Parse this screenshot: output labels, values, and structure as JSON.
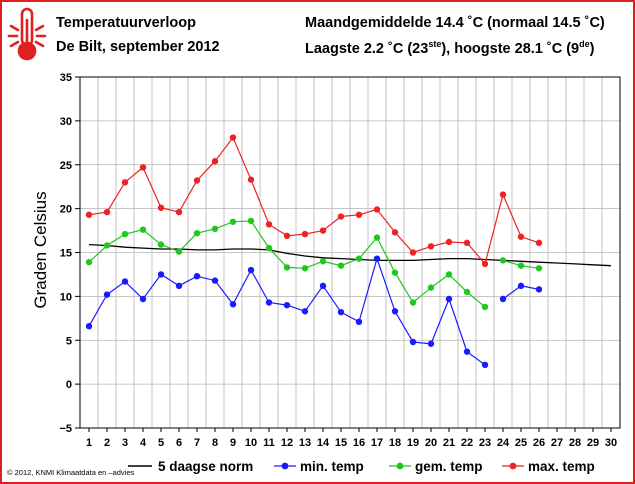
{
  "header": {
    "title": "Temperatuurverloop",
    "location": "De Bilt, september 2012",
    "monthly_avg": "Maandgemiddelde 14.4 ˚C (normaal 14.5 ˚C)",
    "extremes_low": "Laagste 2.2 ˚C (23",
    "extremes_low_sup": "ste",
    "extremes_high": "), hoogste 28.1 ˚C (9",
    "extremes_high_sup": "de",
    "extremes_close": ")"
  },
  "footnote": "© 2012, KNMI Klimaatdata en –advies",
  "logo": {
    "icon": "thermometer-icon"
  },
  "colors": {
    "frame": "#e02020",
    "norm": "#000000",
    "min": "#1a1aff",
    "avg": "#1ec81e",
    "max": "#ee2222",
    "grid": "#b4b4b4",
    "axis": "#000000"
  },
  "chart_data": {
    "type": "line",
    "title": "Temperatuurverloop",
    "ylabel": "Graden Celsius",
    "xlabel": "",
    "ylim": [
      -5,
      35
    ],
    "yticks": [
      -5,
      0,
      5,
      10,
      15,
      20,
      25,
      30,
      35
    ],
    "ytick_labels": [
      "−5",
      "0",
      "5",
      "10",
      "15",
      "20",
      "25",
      "30",
      "35"
    ],
    "x": [
      1,
      2,
      3,
      4,
      5,
      6,
      7,
      8,
      9,
      10,
      11,
      12,
      13,
      14,
      15,
      16,
      17,
      18,
      19,
      20,
      21,
      22,
      23,
      24,
      25,
      26,
      27,
      28,
      29,
      30
    ],
    "xtick_labels": [
      "1",
      "2",
      "3",
      "4",
      "5",
      "6",
      "7",
      "8",
      "9",
      "10",
      "11",
      "12",
      "13",
      "14",
      "15",
      "16",
      "17",
      "18",
      "19",
      "20",
      "21",
      "22",
      "23",
      "24",
      "25",
      "26",
      "27",
      "28",
      "29",
      "30"
    ],
    "grid": true,
    "legend_position": "bottom",
    "series": [
      {
        "key": "norm",
        "name": "5 daagse norm",
        "marker": false,
        "segments": [
          [
            [
              1,
              15.9
            ],
            [
              2,
              15.8
            ],
            [
              3,
              15.6
            ],
            [
              4,
              15.5
            ],
            [
              5,
              15.4
            ],
            [
              6,
              15.4
            ],
            [
              7,
              15.3
            ],
            [
              8,
              15.3
            ],
            [
              9,
              15.4
            ],
            [
              10,
              15.4
            ],
            [
              11,
              15.3
            ],
            [
              12,
              14.9
            ],
            [
              13,
              14.6
            ],
            [
              14,
              14.4
            ],
            [
              15,
              14.3
            ],
            [
              16,
              14.2
            ],
            [
              17,
              14.1
            ],
            [
              18,
              14.1
            ],
            [
              19,
              14.1
            ],
            [
              20,
              14.2
            ],
            [
              21,
              14.3
            ],
            [
              22,
              14.3
            ],
            [
              23,
              14.2
            ],
            [
              24,
              14.1
            ],
            [
              25,
              14.0
            ],
            [
              26,
              13.9
            ],
            [
              27,
              13.8
            ],
            [
              28,
              13.7
            ],
            [
              29,
              13.6
            ],
            [
              30,
              13.5
            ]
          ]
        ]
      },
      {
        "key": "min",
        "name": "min. temp",
        "marker": true,
        "segments": [
          [
            [
              1,
              6.6
            ],
            [
              2,
              10.2
            ],
            [
              3,
              11.7
            ],
            [
              4,
              9.7
            ],
            [
              5,
              12.5
            ],
            [
              6,
              11.2
            ],
            [
              7,
              12.3
            ],
            [
              8,
              11.8
            ],
            [
              9,
              9.1
            ],
            [
              10,
              13.0
            ],
            [
              11,
              9.3
            ],
            [
              12,
              9.0
            ],
            [
              13,
              8.3
            ],
            [
              14,
              11.2
            ],
            [
              15,
              8.2
            ],
            [
              16,
              7.1
            ],
            [
              17,
              14.3
            ],
            [
              18,
              8.3
            ],
            [
              19,
              4.8
            ],
            [
              20,
              4.6
            ],
            [
              21,
              9.7
            ],
            [
              22,
              3.7
            ],
            [
              23,
              2.2
            ]
          ],
          [
            [
              24,
              9.7
            ],
            [
              25,
              11.2
            ],
            [
              26,
              10.8
            ]
          ]
        ]
      },
      {
        "key": "avg",
        "name": "gem. temp",
        "marker": true,
        "segments": [
          [
            [
              1,
              13.9
            ],
            [
              2,
              15.8
            ],
            [
              3,
              17.1
            ],
            [
              4,
              17.6
            ],
            [
              5,
              15.9
            ],
            [
              6,
              15.1
            ],
            [
              7,
              17.2
            ],
            [
              8,
              17.7
            ],
            [
              9,
              18.5
            ],
            [
              10,
              18.6
            ],
            [
              11,
              15.5
            ],
            [
              12,
              13.3
            ],
            [
              13,
              13.2
            ],
            [
              14,
              14.0
            ],
            [
              15,
              13.5
            ],
            [
              16,
              14.3
            ],
            [
              17,
              16.7
            ],
            [
              18,
              12.7
            ],
            [
              19,
              9.3
            ],
            [
              20,
              11.0
            ],
            [
              21,
              12.5
            ],
            [
              22,
              10.5
            ],
            [
              23,
              8.8
            ]
          ],
          [
            [
              24,
              14.1
            ],
            [
              25,
              13.5
            ],
            [
              26,
              13.2
            ]
          ]
        ]
      },
      {
        "key": "max",
        "name": "max. temp",
        "marker": true,
        "segments": [
          [
            [
              1,
              19.3
            ],
            [
              2,
              19.6
            ],
            [
              3,
              23.0
            ],
            [
              4,
              24.7
            ],
            [
              5,
              20.1
            ],
            [
              6,
              19.6
            ],
            [
              7,
              23.2
            ],
            [
              8,
              25.4
            ],
            [
              9,
              28.1
            ],
            [
              10,
              23.3
            ],
            [
              11,
              18.2
            ],
            [
              12,
              16.9
            ],
            [
              13,
              17.1
            ],
            [
              14,
              17.5
            ],
            [
              15,
              19.1
            ],
            [
              16,
              19.3
            ],
            [
              17,
              19.9
            ],
            [
              18,
              17.3
            ],
            [
              19,
              15.0
            ],
            [
              20,
              15.7
            ],
            [
              21,
              16.2
            ],
            [
              22,
              16.1
            ],
            [
              23,
              13.7
            ],
            [
              24,
              21.6
            ],
            [
              25,
              16.8
            ],
            [
              26,
              16.1
            ]
          ]
        ]
      }
    ]
  }
}
